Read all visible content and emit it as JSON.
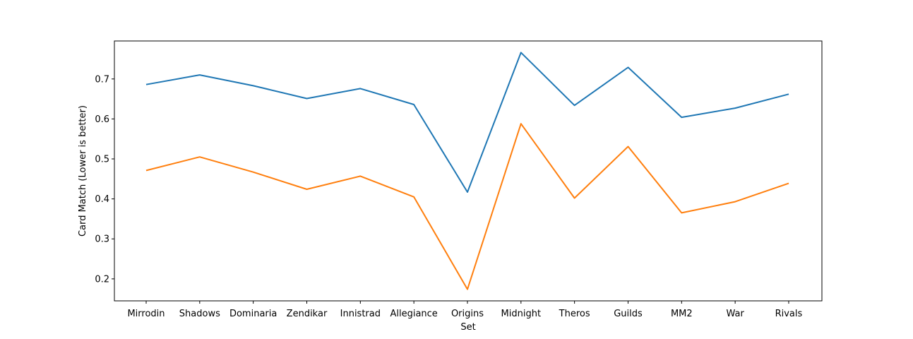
{
  "chart_data": {
    "type": "line",
    "title": "",
    "xlabel": "Set",
    "ylabel": "Card Match (Lower is better)",
    "categories": [
      "Mirrodin",
      "Shadows",
      "Dominaria",
      "Zendikar",
      "Innistrad",
      "Allegiance",
      "Origins",
      "Midnight",
      "Theros",
      "Guilds",
      "MM2",
      "War",
      "Rivals"
    ],
    "yticks": [
      "0.2",
      "0.3",
      "0.4",
      "0.5",
      "0.6",
      "0.7"
    ],
    "ylim": [
      0.145,
      0.795
    ],
    "grid": false,
    "series": [
      {
        "color": "#1f77b4",
        "values": [
          0.686,
          0.71,
          0.683,
          0.651,
          0.676,
          0.636,
          0.417,
          0.766,
          0.634,
          0.729,
          0.604,
          0.627,
          0.662
        ]
      },
      {
        "color": "#ff7f0e",
        "values": [
          0.471,
          0.505,
          0.467,
          0.424,
          0.457,
          0.405,
          0.174,
          0.588,
          0.402,
          0.531,
          0.365,
          0.393,
          0.439
        ]
      }
    ]
  }
}
